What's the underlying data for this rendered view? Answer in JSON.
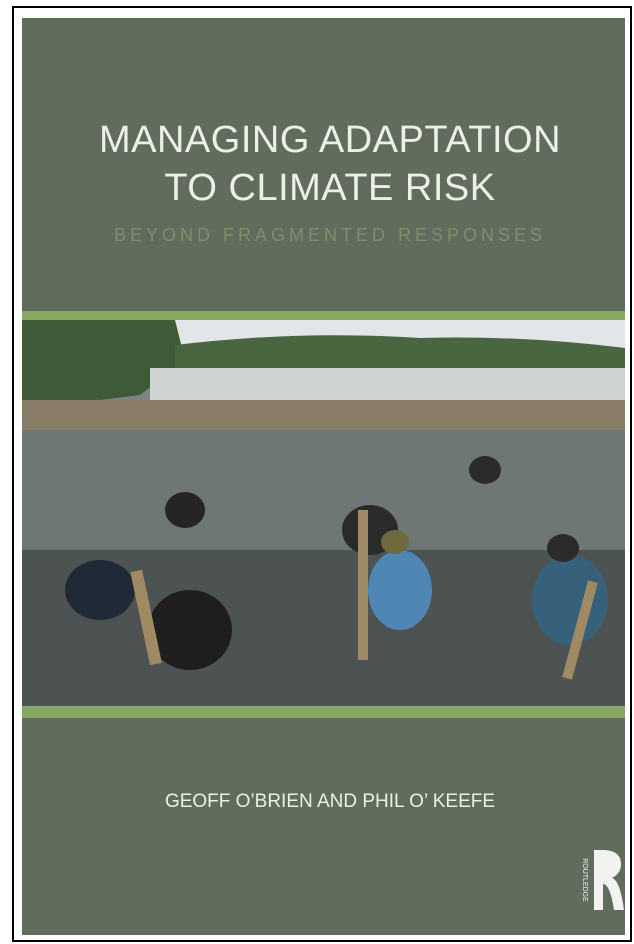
{
  "cover": {
    "title_lines": [
      "MANAGING ADAPTATION",
      "TO CLIMATE RISK"
    ],
    "subtitle": "BEYOND FRAGMENTED RESPONSES",
    "authors": "GEOFF O’BRIEN AND PHIL O’ KEEFE",
    "publisher": "ROUTLEDGE"
  }
}
